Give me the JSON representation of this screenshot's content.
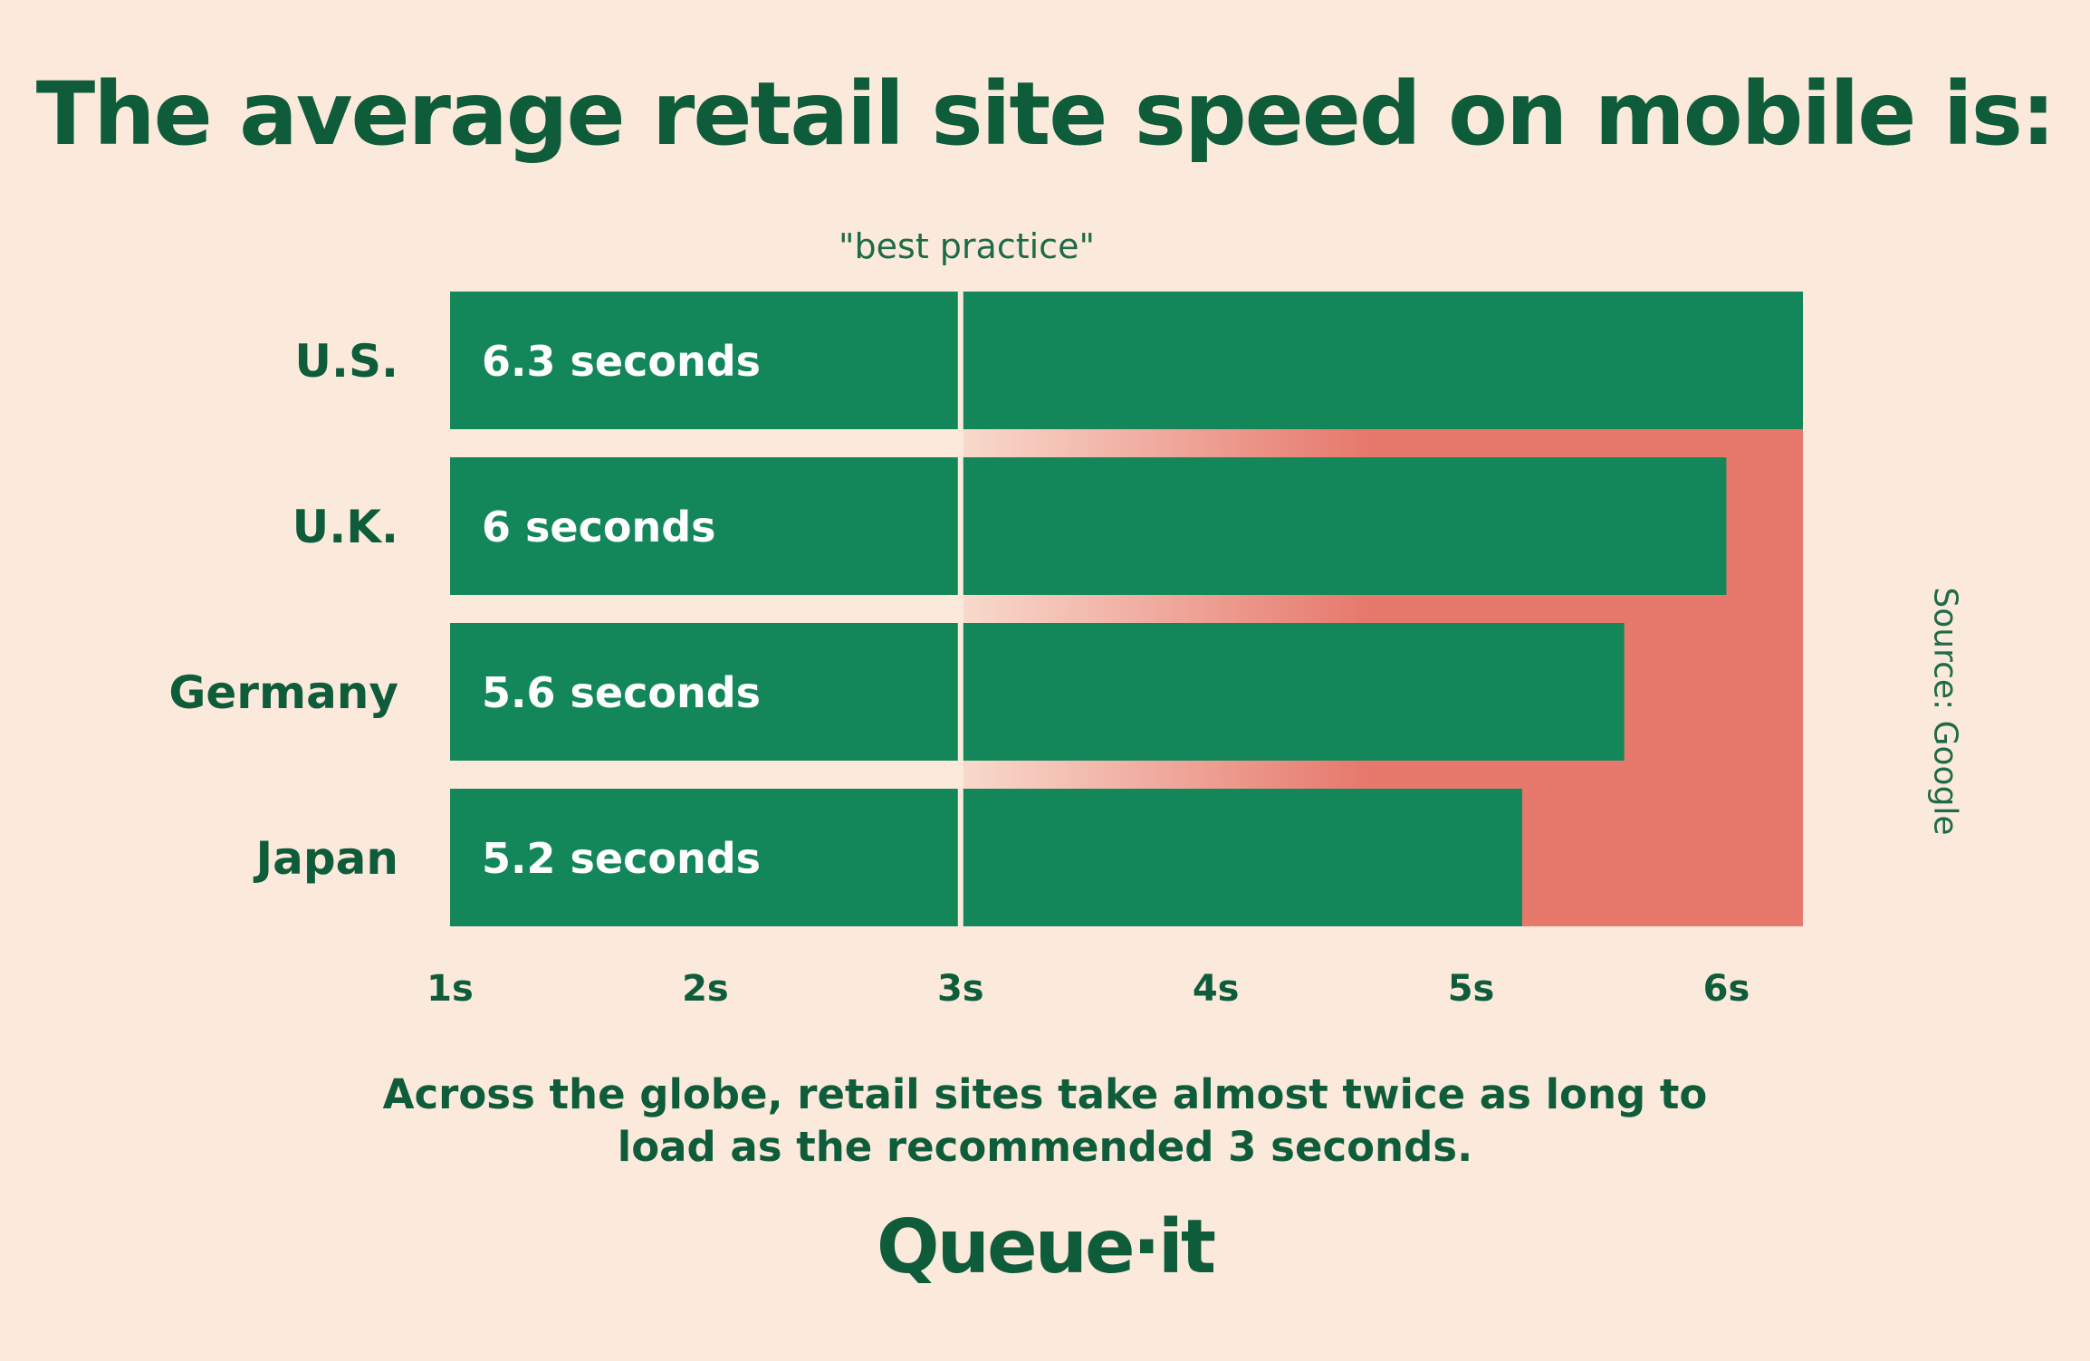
{
  "page": {
    "title": "The average retail site speed on mobile is:",
    "caption_line1": "Across the globe, retail sites take almost twice as long to",
    "caption_line2": "load as the recommended 3 seconds.",
    "brand": "Queue·it",
    "source": "Source: Google"
  },
  "chart_data": {
    "type": "bar",
    "orientation": "horizontal",
    "categories": [
      "U.S.",
      "U.K.",
      "Germany",
      "Japan"
    ],
    "values": [
      6.3,
      6,
      5.6,
      5.2
    ],
    "data_labels": [
      "6.3 seconds",
      "6 seconds",
      "5.6 seconds",
      "5.2 seconds"
    ],
    "xlim": [
      1,
      6.3
    ],
    "x_ticks": [
      "1s",
      "2s",
      "3s",
      "4s",
      "5s",
      "6s"
    ],
    "reference_line": {
      "value": 3,
      "label": "\"best practice\""
    },
    "colors": {
      "bar": "#14875a",
      "overflow": "#e6786c",
      "reference": "#fbe9dc",
      "text": "#0f5c3a",
      "background": "#fbe9dc"
    }
  }
}
